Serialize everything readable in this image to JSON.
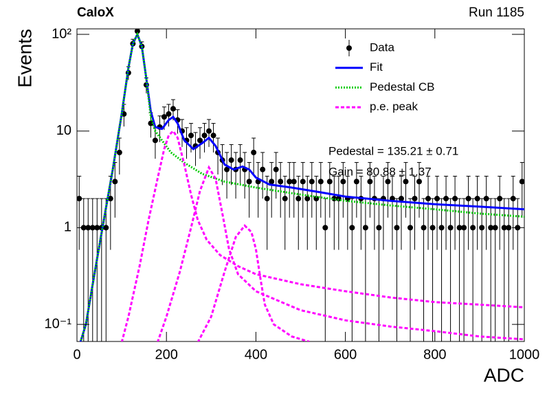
{
  "chart_data": {
    "type": "scatter",
    "title": "CaloX",
    "subtitle": "Run 1185",
    "x_label": "ADC",
    "y_label": "Events",
    "log_y": true,
    "xlim": [
      0,
      1000
    ],
    "xticks": [
      0,
      200,
      400,
      600,
      800,
      1000
    ],
    "ylim": [
      0.0665,
      114
    ],
    "yticks": [
      {
        "value": 0.1,
        "label": "10⁻¹"
      },
      1,
      10,
      {
        "value": 100,
        "label": "10²"
      }
    ],
    "annotations": [
      "Pedestal = 135.21 ± 0.71",
      "Gain = 80.88 ± 1.37"
    ],
    "series": [
      {
        "name": "Data",
        "type": "scatter",
        "color": "#000000",
        "x": [
          5,
          15,
          25,
          35,
          45,
          55,
          65,
          75,
          85,
          95,
          105,
          115,
          125,
          135,
          145,
          155,
          165,
          175,
          185,
          195,
          205,
          215,
          225,
          235,
          245,
          255,
          265,
          275,
          285,
          295,
          305,
          315,
          325,
          335,
          345,
          355,
          365,
          375,
          385,
          395,
          405,
          415,
          425,
          435,
          445,
          455,
          465,
          475,
          485,
          495,
          505,
          515,
          525,
          535,
          545,
          555,
          565,
          575,
          585,
          595,
          605,
          615,
          625,
          635,
          645,
          655,
          665,
          675,
          685,
          695,
          705,
          715,
          725,
          735,
          745,
          755,
          765,
          775,
          785,
          795,
          805,
          815,
          825,
          835,
          845,
          855,
          865,
          875,
          885,
          895,
          905,
          915,
          925,
          935,
          945,
          955,
          965,
          975,
          985,
          995
        ],
        "values": [
          2,
          1,
          1,
          1,
          1,
          1,
          1,
          2,
          3,
          6,
          15,
          40,
          80,
          108,
          75,
          30,
          12,
          8,
          11,
          14,
          15,
          17,
          13,
          10,
          8,
          9,
          7,
          8,
          9,
          10,
          9,
          6,
          5,
          4,
          5,
          4,
          5,
          4,
          3,
          6,
          3,
          4,
          2,
          3,
          4,
          3,
          2,
          3,
          3,
          2,
          3,
          2,
          3,
          2,
          3,
          1,
          3,
          2,
          2,
          3,
          2,
          1,
          3,
          2,
          1,
          3,
          2,
          1,
          2,
          3,
          2,
          1,
          2,
          3,
          1,
          2,
          3,
          1,
          2,
          1,
          2,
          1,
          2,
          1,
          2,
          1,
          1,
          2,
          1,
          2,
          1,
          2,
          1,
          1,
          2,
          1,
          1,
          2,
          1,
          3
        ],
        "errors": [
          1.41,
          1,
          1,
          1,
          1,
          1,
          1,
          1.41,
          1.73,
          2.45,
          3.87,
          6.32,
          8.94,
          10.39,
          8.66,
          5.48,
          3.46,
          2.83,
          3.32,
          3.74,
          3.87,
          4.12,
          3.61,
          3.16,
          2.83,
          3,
          2.65,
          2.83,
          3,
          3.16,
          3,
          2.45,
          2.24,
          2,
          2.24,
          2,
          2.24,
          2,
          1.73,
          2.45,
          1.73,
          2,
          1.41,
          1.73,
          2,
          1.73,
          1.41,
          1.73,
          1.73,
          1.41,
          1.73,
          1.41,
          1.73,
          1.41,
          1.73,
          1,
          1.73,
          1.41,
          1.41,
          1.73,
          1.41,
          1,
          1.73,
          1.41,
          1,
          1.73,
          1.41,
          1,
          1.41,
          1.73,
          1.41,
          1,
          1.41,
          1.73,
          1,
          1.41,
          1.73,
          1,
          1.41,
          1,
          1.41,
          1,
          1.41,
          1,
          1.41,
          1,
          1,
          1.41,
          1,
          1.41,
          1,
          1.41,
          1,
          1,
          1.41,
          1,
          1,
          1.41,
          1,
          1.73
        ]
      },
      {
        "name": "Fit",
        "type": "line",
        "color": "#0000ff",
        "dash": "solid",
        "x": [
          0,
          20,
          40,
          60,
          80,
          100,
          115,
          125,
          135,
          145,
          155,
          165,
          175,
          190,
          205,
          215,
          225,
          240,
          260,
          280,
          295,
          310,
          330,
          350,
          370,
          385,
          400,
          430,
          480,
          550,
          600,
          700,
          800,
          900,
          1000
        ],
        "values": [
          0.05,
          0.1,
          0.35,
          1.2,
          4,
          15,
          45,
          80,
          100,
          75,
          35,
          16,
          11,
          10.5,
          13,
          14,
          12,
          8,
          6.5,
          7.5,
          8.5,
          7,
          4.5,
          4,
          4.3,
          4,
          3.3,
          2.8,
          2.6,
          2.3,
          2.1,
          1.9,
          1.75,
          1.65,
          1.55
        ]
      },
      {
        "name": "Pedestal CB",
        "type": "line",
        "color": "#00cc00",
        "dash": "dotted",
        "x": [
          0,
          20,
          40,
          60,
          80,
          100,
          115,
          125,
          135,
          145,
          155,
          165,
          175,
          190,
          210,
          240,
          280,
          330,
          400,
          500,
          600,
          700,
          800,
          900,
          1000
        ],
        "values": [
          0.05,
          0.1,
          0.35,
          1.2,
          4,
          15,
          45,
          80,
          100,
          75,
          35,
          14,
          10,
          8,
          6,
          4.7,
          3.6,
          3,
          2.6,
          2.2,
          1.9,
          1.7,
          1.55,
          1.4,
          1.3
        ]
      },
      {
        "name": "p.e. peak",
        "type": "line",
        "color": "#ff00ff",
        "dash": "dashed",
        "x": [
          100,
          115,
          140,
          160,
          180,
          195,
          205,
          215,
          225,
          240,
          255,
          270,
          290,
          320,
          360,
          400,
          500,
          600,
          700,
          800,
          900,
          1000,
          1000,
          180,
          200,
          230,
          255,
          275,
          295,
          310,
          325,
          340,
          360,
          400,
          500,
          600,
          700,
          800,
          900,
          1000,
          1000,
          270,
          300,
          330,
          355,
          375,
          390,
          400,
          410,
          420,
          440,
          480,
          520
        ],
        "values": [
          0.065,
          0.12,
          0.4,
          1.2,
          3.2,
          6.5,
          9,
          10,
          8.5,
          4.5,
          2.2,
          1.2,
          0.75,
          0.52,
          0.4,
          0.33,
          0.26,
          0.22,
          0.19,
          0.17,
          0.16,
          0.15,
          null,
          0.065,
          0.12,
          0.35,
          1.0,
          2.4,
          4.2,
          3.2,
          1.4,
          0.6,
          0.33,
          0.22,
          0.14,
          0.11,
          0.095,
          0.085,
          0.075,
          0.07,
          null,
          0.065,
          0.12,
          0.35,
          0.8,
          1.05,
          0.9,
          0.6,
          0.3,
          0.16,
          0.1,
          0.075,
          0.066
        ]
      }
    ]
  }
}
